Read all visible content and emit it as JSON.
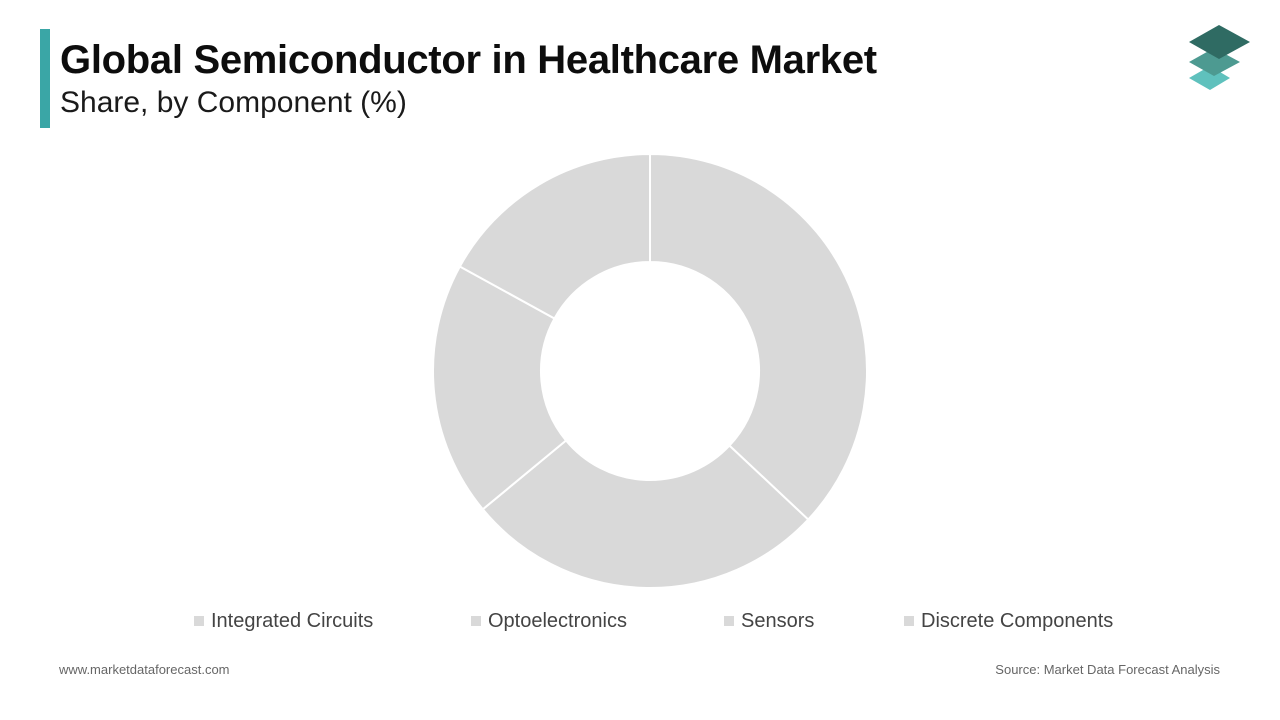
{
  "title": "Global Semiconductor in Healthcare Market",
  "subtitle": "Share, by Component (%)",
  "colors": {
    "accent": "#3aa6a6",
    "slice": "#d9d9d9",
    "slice_stroke": "#ffffff",
    "logo_dark": "#2f6b63",
    "logo_mid": "#4d9a91",
    "logo_light": "#5fc1bd"
  },
  "logo": {
    "icon": "layered-stack-icon"
  },
  "chart_data": {
    "type": "pie",
    "variant": "donut",
    "categories": [
      "Integrated Circuits",
      "Optoelectronics",
      "Sensors",
      "Discrete Components"
    ],
    "values": [
      37,
      27,
      19,
      17
    ],
    "legend": {
      "position": "bottom"
    }
  },
  "footer": {
    "website": "www.marketdataforecast.com",
    "source": "Source: Market Data Forecast Analysis"
  }
}
